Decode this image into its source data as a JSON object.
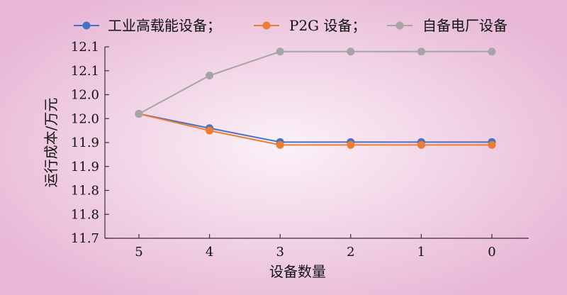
{
  "chart_data": {
    "type": "line",
    "title": "",
    "xlabel": "设备数量",
    "ylabel": "运行成本/万元",
    "categories": [
      "5",
      "4",
      "3",
      "2",
      "1",
      "0"
    ],
    "ylim": [
      11.7,
      12.1
    ],
    "yticks": [
      "11.7",
      "11.8",
      "11.8",
      "11.9",
      "11.9",
      "12.0",
      "12.0",
      "12.1",
      "12.1"
    ],
    "grid": false,
    "legend_position": "top",
    "series": [
      {
        "name": "工业高载能设备；",
        "color": "#4472C4",
        "values": [
          11.96,
          11.93,
          11.901,
          11.901,
          11.901,
          11.901
        ]
      },
      {
        "name": "P2G 设备；",
        "color": "#ED7D31",
        "values": [
          11.96,
          11.925,
          11.895,
          11.895,
          11.895,
          11.895
        ]
      },
      {
        "name": "自备电厂设备",
        "color": "#A5A5A5",
        "values": [
          11.96,
          12.04,
          12.09,
          12.09,
          12.09,
          12.09
        ]
      }
    ]
  },
  "colors": {
    "background_center": "#FBF1F7",
    "background_edge": "#E8B7D6",
    "axis": "#333333",
    "text": "#111111"
  }
}
